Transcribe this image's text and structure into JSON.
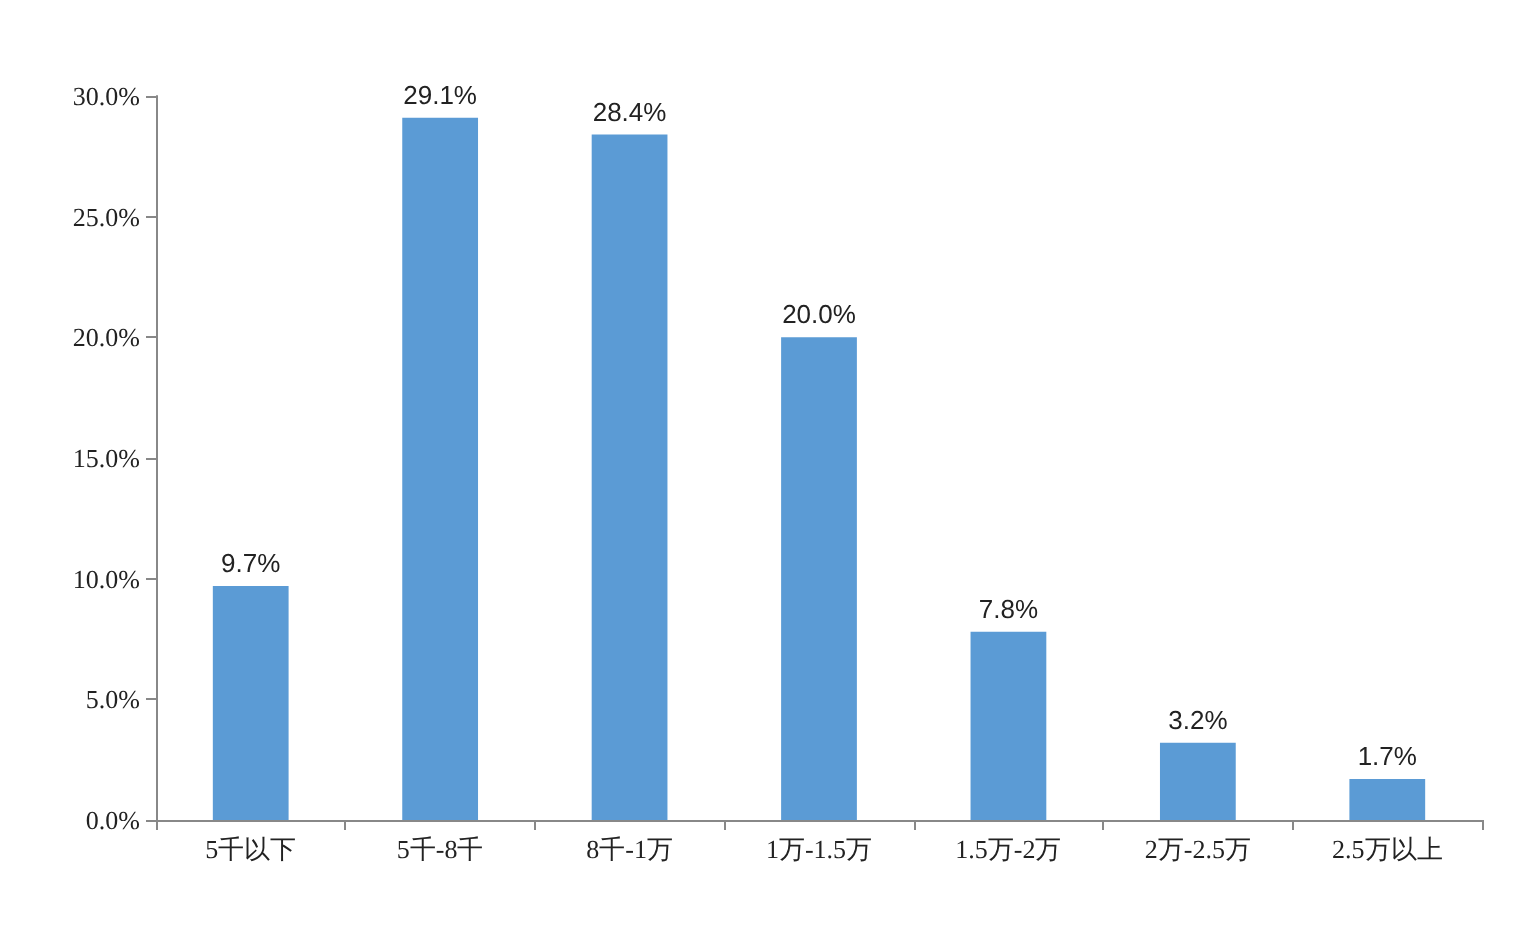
{
  "chart_data": {
    "type": "bar",
    "categories": [
      "5千以下",
      "5千-8千",
      "8千-1万",
      "1万-1.5万",
      "1.5万-2万",
      "2万-2.5万",
      "2.5万以上"
    ],
    "values": [
      9.7,
      29.1,
      28.4,
      20.0,
      7.8,
      3.2,
      1.7
    ],
    "value_labels": [
      "9.7%",
      "29.1%",
      "28.4%",
      "20.0%",
      "7.8%",
      "3.2%",
      "1.7%"
    ],
    "color": "#5b9bd5",
    "ylim": [
      0,
      30
    ],
    "yticks": [
      {
        "value": 0,
        "label": "0.0%"
      },
      {
        "value": 5,
        "label": "5.0%"
      },
      {
        "value": 10,
        "label": "10.0%"
      },
      {
        "value": 15,
        "label": "15.0%"
      },
      {
        "value": 20,
        "label": "20.0%"
      },
      {
        "value": 25,
        "label": "25.0%"
      },
      {
        "value": 30,
        "label": "30.0%"
      }
    ],
    "grid": false
  }
}
